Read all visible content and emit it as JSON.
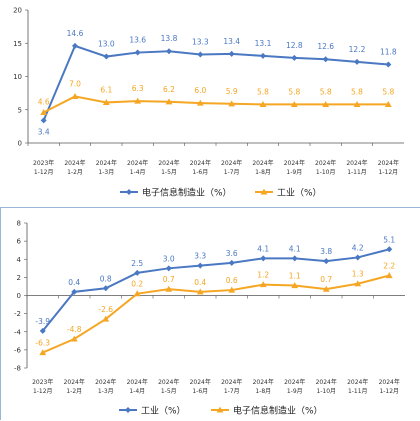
{
  "colors": {
    "blue": "#4a78c2",
    "orange": "#f5a623",
    "axis": "#555555",
    "grid": "#dddddd"
  },
  "chart_data": [
    {
      "type": "line",
      "categories": [
        [
          "2023年",
          "1-12月"
        ],
        [
          "2024年",
          "1-2月"
        ],
        [
          "2024年",
          "1-3月"
        ],
        [
          "2024年",
          "1-4月"
        ],
        [
          "2024年",
          "1-5月"
        ],
        [
          "2024年",
          "1-6月"
        ],
        [
          "2024年",
          "1-7月"
        ],
        [
          "2024年",
          "1-8月"
        ],
        [
          "2024年",
          "1-9月"
        ],
        [
          "2024年",
          "1-10月"
        ],
        [
          "2024年",
          "1-11月"
        ],
        [
          "2024年",
          "1-12月"
        ]
      ],
      "yticks": [
        0,
        5,
        10,
        15,
        20
      ],
      "ylim": [
        0,
        20
      ],
      "series": [
        {
          "name": "电子信息制造业（%）",
          "color": "#4a78c2",
          "marker": "diamond",
          "label_pos": "above",
          "values": [
            3.4,
            14.6,
            13.0,
            13.6,
            13.8,
            13.3,
            13.4,
            13.1,
            12.8,
            12.6,
            12.2,
            11.8
          ],
          "labels": [
            "3.4",
            "14.6",
            "13.0",
            "13.6",
            "13.8",
            "13.3",
            "13.4",
            "13.1",
            "12.8",
            "12.6",
            "12.2",
            "11.8"
          ]
        },
        {
          "name": "工业（%）",
          "color": "#f5a623",
          "marker": "triangle",
          "label_pos": "above",
          "values": [
            4.6,
            7.0,
            6.1,
            6.3,
            6.2,
            6.0,
            5.9,
            5.8,
            5.8,
            5.8,
            5.8,
            5.8
          ],
          "labels": [
            "4.6",
            "7.0",
            "6.1",
            "6.3",
            "6.2",
            "6.0",
            "5.9",
            "5.8",
            "5.8",
            "5.8",
            "5.8",
            "5.8"
          ]
        }
      ],
      "legend": [
        "电子信息制造业（%）",
        "工业（%）"
      ]
    },
    {
      "type": "line",
      "categories": [
        [
          "2023年",
          "1-12月"
        ],
        [
          "2024年",
          "1-2月"
        ],
        [
          "2024年",
          "1-3月"
        ],
        [
          "2024年",
          "1-4月"
        ],
        [
          "2024年",
          "1-5月"
        ],
        [
          "2024年",
          "1-6月"
        ],
        [
          "2024年",
          "1-7月"
        ],
        [
          "2024年",
          "1-8月"
        ],
        [
          "2024年",
          "1-9月"
        ],
        [
          "2024年",
          "1-10月"
        ],
        [
          "2024年",
          "1-11月"
        ],
        [
          "2024年",
          "1-12月"
        ]
      ],
      "yticks": [
        -8,
        -6,
        -4,
        -2,
        0,
        2,
        4,
        6,
        8
      ],
      "ylim": [
        -8,
        8
      ],
      "series": [
        {
          "name": "工业（%）",
          "color": "#4a78c2",
          "marker": "diamond",
          "label_pos": "above",
          "values": [
            -3.9,
            0.4,
            0.8,
            2.5,
            3.0,
            3.3,
            3.6,
            4.1,
            4.1,
            3.8,
            4.2,
            5.1
          ],
          "labels": [
            "-3.9",
            "0.4",
            "0.8",
            "2.5",
            "3.0",
            "3.3",
            "3.6",
            "4.1",
            "4.1",
            "3.8",
            "4.2",
            "5.1"
          ]
        },
        {
          "name": "电子信息制造业（%）",
          "color": "#f5a623",
          "marker": "triangle",
          "label_pos": "above",
          "values": [
            -6.3,
            -4.8,
            -2.6,
            0.2,
            0.7,
            0.4,
            0.6,
            1.2,
            1.1,
            0.7,
            1.3,
            2.2
          ],
          "labels": [
            "-6.3",
            "-4.8",
            "-2.6",
            "0.2",
            "0.7",
            "0.4",
            "0.6",
            "1.2",
            "1.1",
            "0.7",
            "1.3",
            "2.2"
          ]
        }
      ],
      "legend": [
        "工业（%）",
        "电子信息制造业（%）"
      ]
    }
  ]
}
